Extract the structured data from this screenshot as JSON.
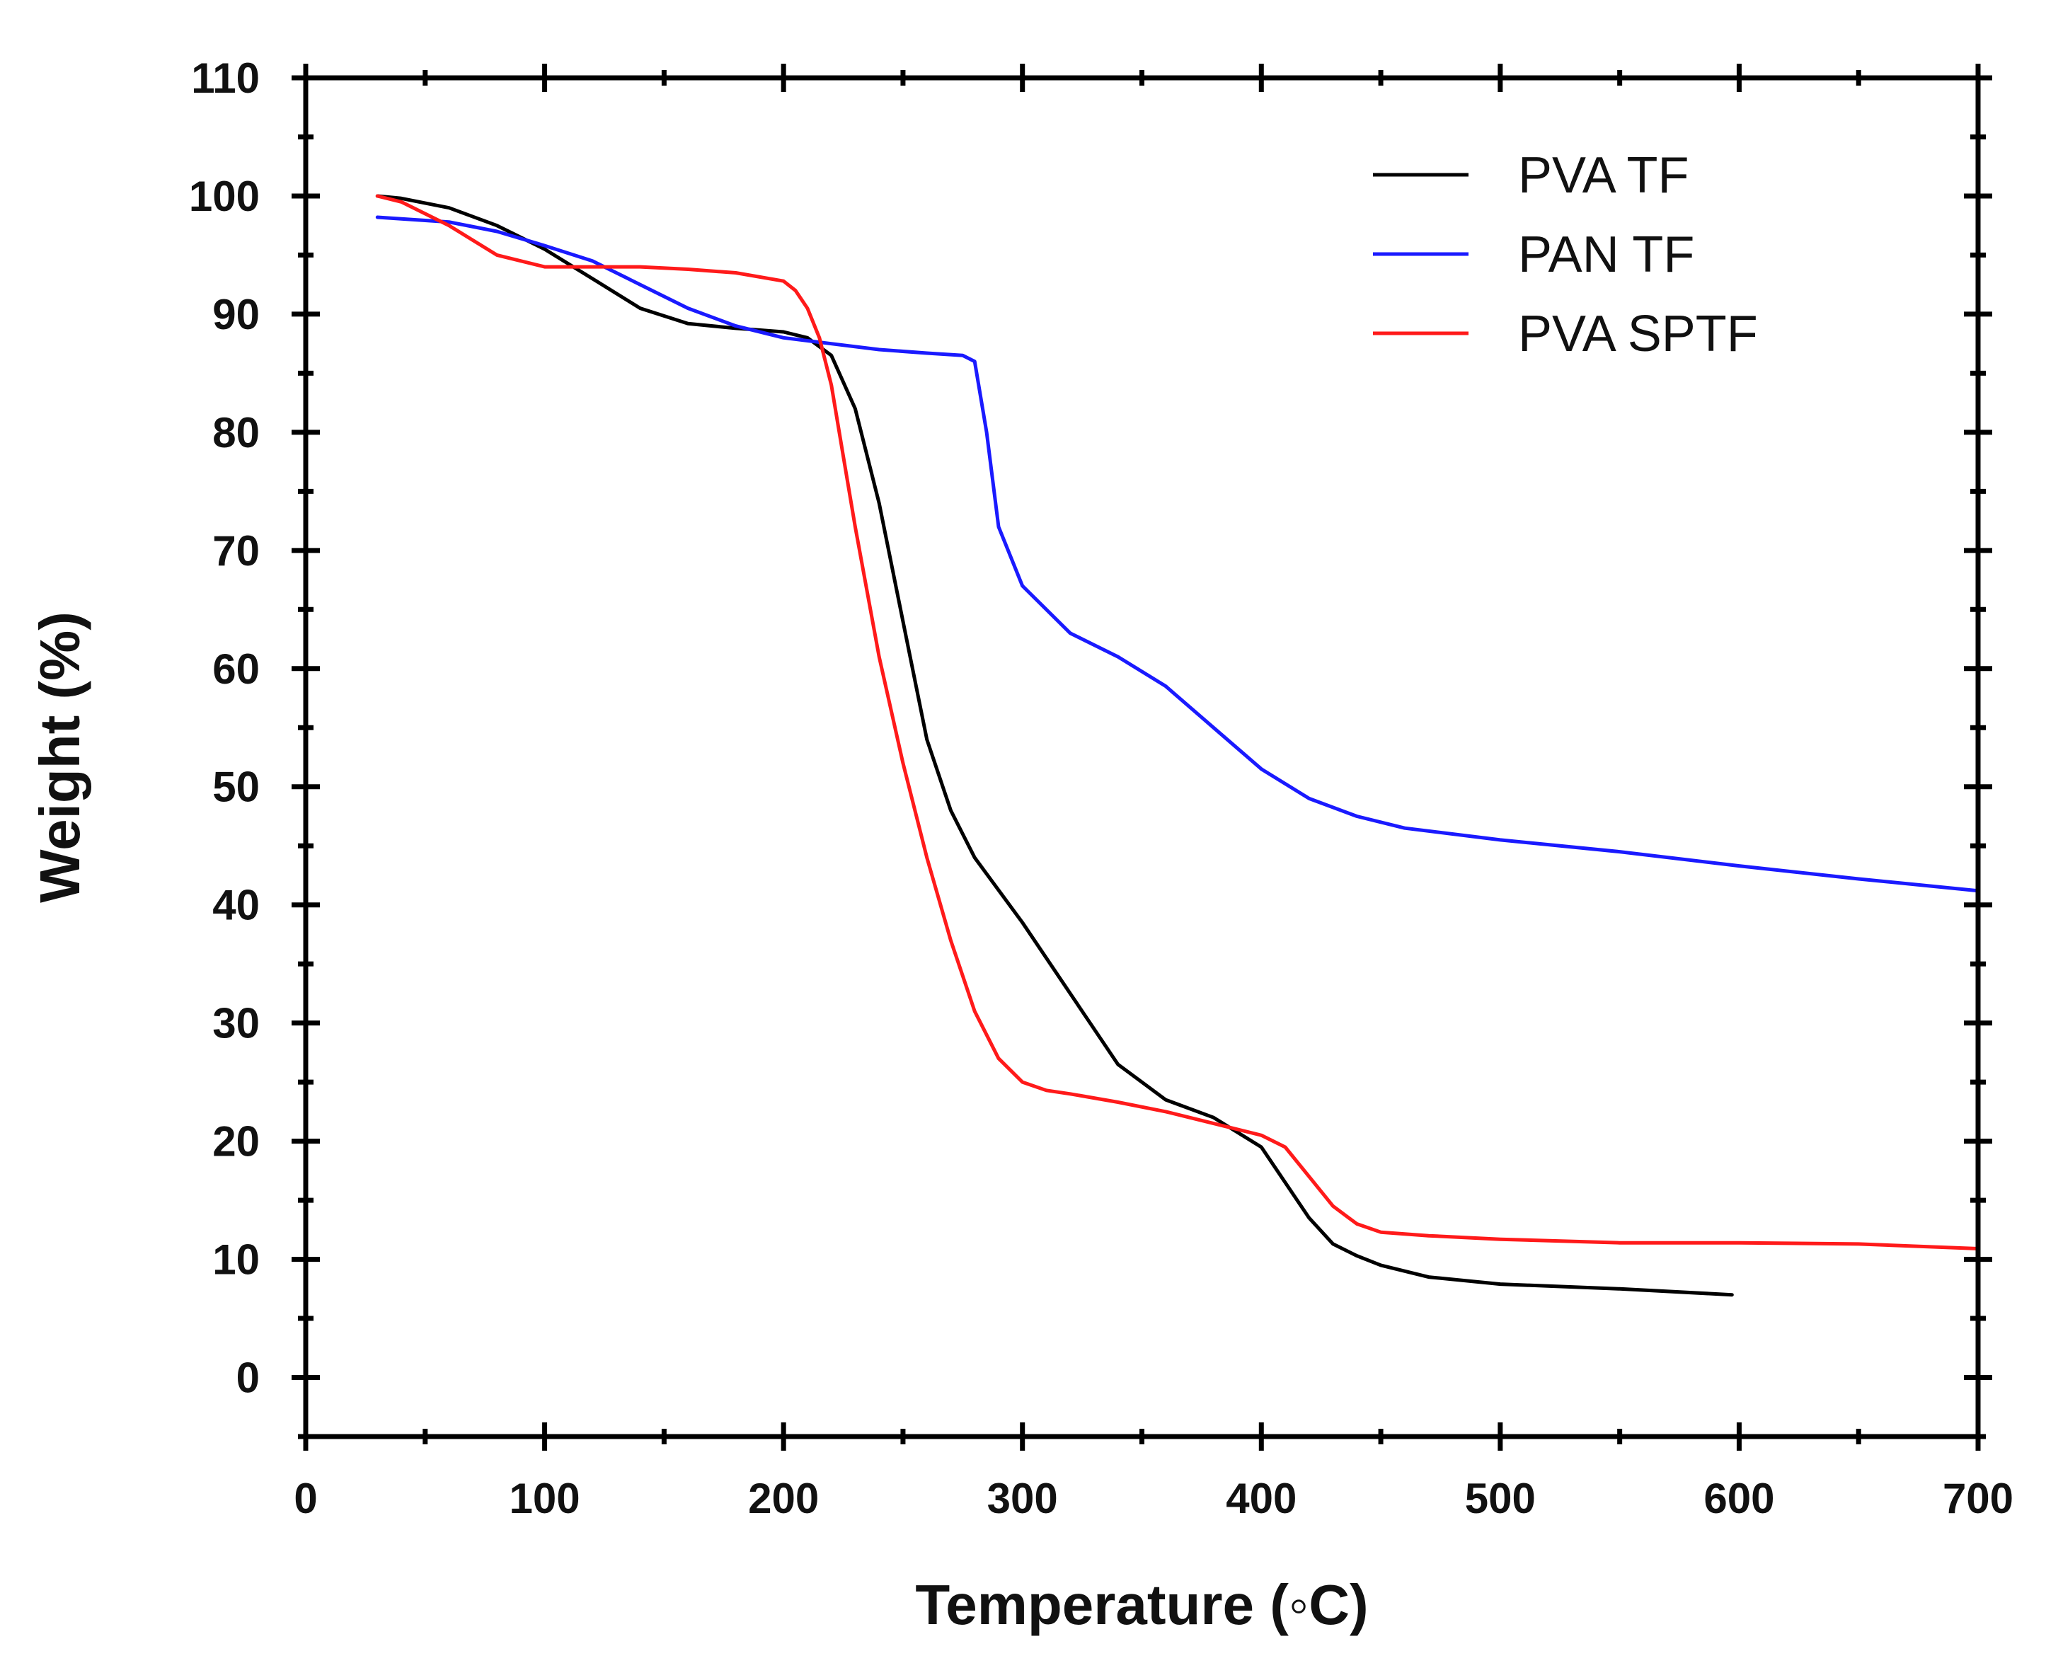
{
  "chart_data": {
    "type": "line",
    "title": "",
    "xlabel": "Temperature (◦C)",
    "ylabel": "Weight (%)",
    "xlim": [
      0,
      700
    ],
    "ylim": [
      -5,
      110
    ],
    "x_ticks": [
      0,
      100,
      200,
      300,
      400,
      500,
      600,
      700
    ],
    "y_ticks": [
      0,
      10,
      20,
      30,
      40,
      50,
      60,
      70,
      80,
      90,
      100,
      110
    ],
    "grid": false,
    "legend_position": "top-right",
    "series": [
      {
        "name": "PVA TF",
        "color": "#000000",
        "x": [
          30,
          40,
          60,
          80,
          100,
          120,
          140,
          160,
          180,
          200,
          210,
          220,
          230,
          240,
          250,
          260,
          270,
          280,
          300,
          320,
          340,
          360,
          380,
          400,
          410,
          420,
          430,
          440,
          450,
          470,
          500,
          550,
          597
        ],
        "y": [
          100,
          99.8,
          99,
          97.5,
          95.5,
          93,
          90.5,
          89.2,
          88.8,
          88.5,
          88,
          86.5,
          82,
          74,
          64,
          54,
          48,
          44,
          38.5,
          32.5,
          26.5,
          23.5,
          22,
          19.5,
          16.5,
          13.5,
          11.3,
          10.3,
          9.5,
          8.5,
          7.9,
          7.5,
          7
        ]
      },
      {
        "name": "PAN TF",
        "color": "#1a1aff",
        "x": [
          30,
          60,
          80,
          100,
          120,
          140,
          160,
          180,
          200,
          220,
          240,
          260,
          275,
          280,
          285,
          290,
          300,
          320,
          340,
          360,
          380,
          400,
          420,
          440,
          460,
          500,
          550,
          600,
          650,
          700
        ],
        "y": [
          98.2,
          97.8,
          97,
          95.8,
          94.5,
          92.5,
          90.5,
          89,
          88,
          87.5,
          87,
          86.7,
          86.5,
          86,
          80,
          72,
          67,
          63,
          61,
          58.5,
          55,
          51.5,
          49,
          47.5,
          46.5,
          45.5,
          44.5,
          43.3,
          42.2,
          41.2
        ]
      },
      {
        "name": "PVA SPTF",
        "color": "#ff1a1a",
        "x": [
          30,
          40,
          60,
          80,
          100,
          120,
          140,
          160,
          180,
          200,
          205,
          210,
          215,
          220,
          225,
          230,
          240,
          250,
          260,
          270,
          280,
          290,
          300,
          310,
          320,
          340,
          360,
          380,
          400,
          410,
          420,
          430,
          440,
          450,
          470,
          500,
          550,
          600,
          650,
          700
        ],
        "y": [
          100,
          99.5,
          97.5,
          95,
          94,
          94,
          94,
          93.8,
          93.5,
          92.8,
          92,
          90.5,
          88,
          84,
          78,
          72,
          61,
          52,
          44,
          37,
          31,
          27,
          25,
          24.3,
          24,
          23.3,
          22.5,
          21.5,
          20.5,
          19.5,
          17,
          14.5,
          13,
          12.3,
          12,
          11.7,
          11.4,
          11.4,
          11.3,
          10.9
        ]
      }
    ]
  }
}
